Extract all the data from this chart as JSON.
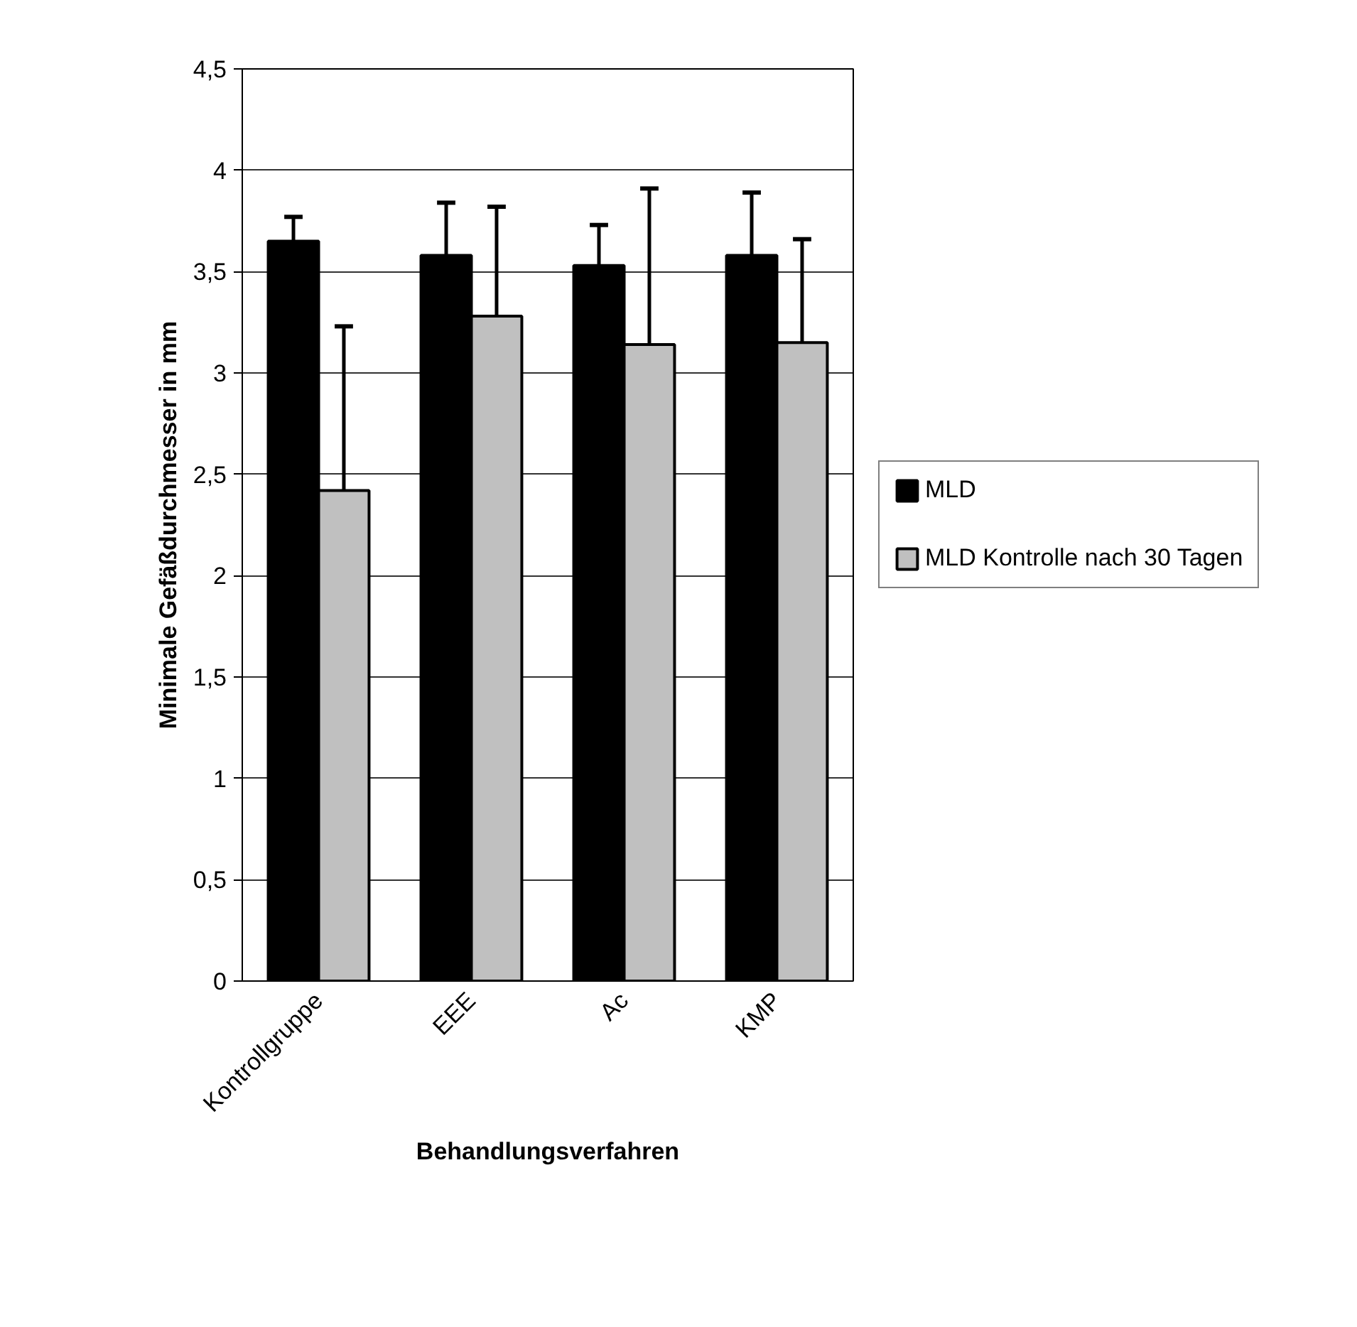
{
  "chart_data": {
    "type": "bar",
    "xlabel": "Behandlungsverfahren",
    "ylabel": "Minimale Gefäßdurchmesser in mm",
    "categories": [
      "Kontrollgruppe",
      "EEE",
      "Ac",
      "KMP"
    ],
    "series": [
      {
        "name": "MLD",
        "color": "#000000",
        "values": [
          3.65,
          3.58,
          3.53,
          3.58
        ],
        "errors": [
          [
            3.65,
            3.77
          ],
          [
            3.58,
            3.84
          ],
          [
            3.53,
            3.73
          ],
          [
            3.58,
            3.89
          ]
        ]
      },
      {
        "name": "MLD Kontrolle nach 30 Tagen",
        "color": "#c0c0c0",
        "values": [
          2.42,
          3.28,
          3.14,
          3.15
        ],
        "errors": [
          [
            2.42,
            3.23
          ],
          [
            3.28,
            3.82
          ],
          [
            3.14,
            3.91
          ],
          [
            3.15,
            3.66
          ]
        ]
      }
    ],
    "ylim": [
      0,
      4.5
    ],
    "yticks": [
      0,
      {
        "value": 0.5,
        "label": "0,5"
      },
      1,
      {
        "value": 1.5,
        "label": "1,5"
      },
      2,
      {
        "value": 2.5,
        "label": "2,5"
      },
      3,
      {
        "value": 3.5,
        "label": "3,5"
      },
      4,
      {
        "value": 4.5,
        "label": "4,5"
      }
    ],
    "grid": "y",
    "legend": "right"
  }
}
